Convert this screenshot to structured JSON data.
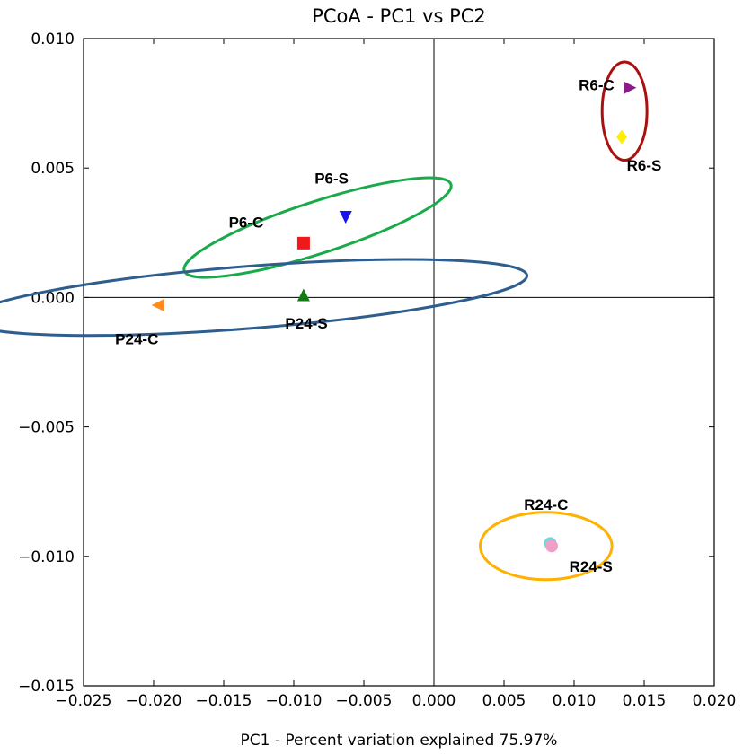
{
  "chart_data": {
    "type": "scatter",
    "title": "PCoA - PC1 vs PC2",
    "xlabel": "PC1 - Percent variation explained 75.97%",
    "ylabel": "",
    "xlim": [
      -0.025,
      0.02
    ],
    "ylim": [
      -0.015,
      0.01
    ],
    "xticks": [
      -0.025,
      -0.02,
      -0.015,
      -0.01,
      -0.005,
      0.0,
      0.005,
      0.01,
      0.015,
      0.02
    ],
    "xtick_labels": [
      "−0.025",
      "−0.020",
      "−0.015",
      "−0.010",
      "−0.005",
      "0.000",
      "0.005",
      "0.010",
      "0.015",
      "0.020"
    ],
    "yticks": [
      0.01,
      0.005,
      0.0,
      -0.005,
      -0.01,
      -0.015
    ],
    "ytick_labels": [
      "0.010",
      "0.005",
      "0.000",
      "−0.005",
      "−0.010",
      "−0.015"
    ],
    "grid": false,
    "zero_lines": true,
    "series": [
      {
        "name": "P6-S",
        "x": -0.0063,
        "y": 0.0031,
        "marker": "triangle-down",
        "color": "#1515ee"
      },
      {
        "name": "P6-C",
        "x": -0.0093,
        "y": 0.0021,
        "marker": "square",
        "color": "#ee1a1a"
      },
      {
        "name": "P24-S",
        "x": -0.0093,
        "y": 0.0001,
        "marker": "triangle-up",
        "color": "#147a14"
      },
      {
        "name": "P24-C",
        "x": -0.0197,
        "y": -0.0003,
        "marker": "triangle-left",
        "color": "#ff8c1a"
      },
      {
        "name": "R6-C",
        "x": 0.014,
        "y": 0.0081,
        "marker": "triangle-right",
        "color": "#8b1a8b"
      },
      {
        "name": "R6-S",
        "x": 0.0134,
        "y": 0.0062,
        "marker": "diamond",
        "color": "#ffee00"
      },
      {
        "name": "R24-C",
        "x": 0.0083,
        "y": -0.0095,
        "marker": "circle",
        "color": "#66dddd"
      },
      {
        "name": "R24-S",
        "x": 0.0084,
        "y": -0.0096,
        "marker": "circle",
        "color": "#f0a0c8"
      }
    ],
    "point_labels": [
      {
        "text": "P6-S",
        "x": -0.0073,
        "y": 0.0044
      },
      {
        "text": "P6-C",
        "x": -0.0134,
        "y": 0.0027
      },
      {
        "text": "P24-C",
        "x": -0.0212,
        "y": -0.0018
      },
      {
        "text": "P24-S",
        "x": -0.0091,
        "y": -0.0012
      },
      {
        "text": "R6-C",
        "x": 0.0116,
        "y": 0.008
      },
      {
        "text": "R6-S",
        "x": 0.015,
        "y": 0.0049
      },
      {
        "text": "R24-C",
        "x": 0.008,
        "y": -0.0082
      },
      {
        "text": "R24-S",
        "x": 0.0112,
        "y": -0.0106
      }
    ],
    "groups": [
      {
        "members": [
          "P6-C",
          "P6-S"
        ],
        "color": "#1aaa4a",
        "cx": -0.0083,
        "cy": 0.0027,
        "rx": 0.01,
        "ry": 0.001,
        "angle_deg": -18
      },
      {
        "members": [
          "P24-C",
          "P24-S"
        ],
        "color": "#2e5e8e",
        "cx": -0.0133,
        "cy": 0.0,
        "rx": 0.02,
        "ry": 0.0012,
        "angle_deg": -4.5
      },
      {
        "members": [
          "R6-C",
          "R6-S"
        ],
        "color": "#aa1010",
        "cx": 0.0136,
        "cy": 0.0072,
        "rx": 0.0016,
        "ry": 0.0019,
        "angle_deg": 0
      },
      {
        "members": [
          "R24-C",
          "R24-S"
        ],
        "color": "#ffb000",
        "cx": 0.008,
        "cy": -0.0096,
        "rx": 0.0047,
        "ry": 0.0013,
        "angle_deg": 0
      }
    ]
  }
}
